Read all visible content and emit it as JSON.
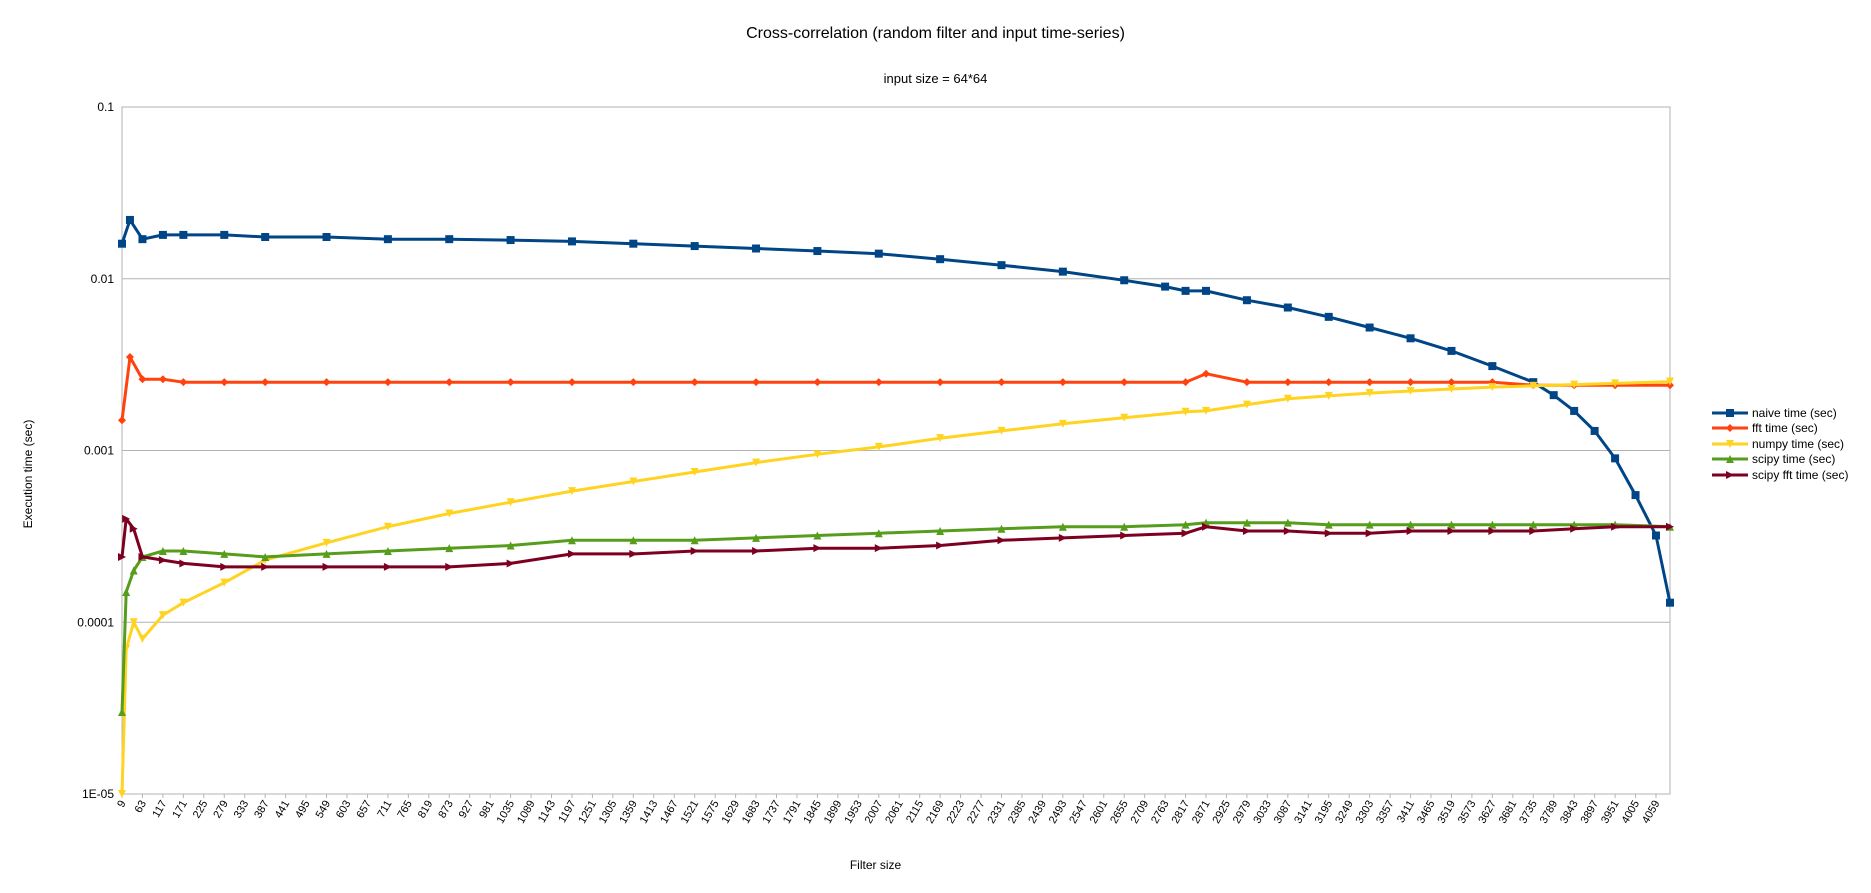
{
  "chart_data": {
    "type": "line",
    "title": "Cross-correlation (random filter and input time-series)",
    "subtitle": "input size = 64*64",
    "xlabel": "Filter size",
    "ylabel": "Execution time (sec)",
    "y_scale": "log",
    "ylim": [
      1e-05,
      0.1
    ],
    "y_ticks": [
      "0.1",
      "0.01",
      "0.001",
      "0.0001",
      "1E-05"
    ],
    "xlim": [
      9,
      4096
    ],
    "x_ticks": [
      "9",
      "63",
      "117",
      "171",
      "225",
      "279",
      "333",
      "387",
      "441",
      "495",
      "549",
      "603",
      "657",
      "711",
      "765",
      "819",
      "873",
      "927",
      "981",
      "1035",
      "1089",
      "1143",
      "1197",
      "1251",
      "1305",
      "1359",
      "1413",
      "1467",
      "1521",
      "1575",
      "1629",
      "1683",
      "1737",
      "1791",
      "1845",
      "1899",
      "1953",
      "2007",
      "2061",
      "2115",
      "2169",
      "2223",
      "2277",
      "2331",
      "2385",
      "2439",
      "2493",
      "2547",
      "2601",
      "2655",
      "2709",
      "2763",
      "2817",
      "2871",
      "2925",
      "2979",
      "3033",
      "3087",
      "3141",
      "3195",
      "3249",
      "3303",
      "3357",
      "3411",
      "3465",
      "3519",
      "3573",
      "3627",
      "3681",
      "3735",
      "3789",
      "3843",
      "3897",
      "3951",
      "4005",
      "4059"
    ],
    "grid": "horizontal",
    "legend_position": "right",
    "series": [
      {
        "name": "naive time (sec)",
        "color": "#004586",
        "marker": "square",
        "x": [
          9,
          30,
          63,
          117,
          171,
          279,
          387,
          549,
          711,
          873,
          1035,
          1197,
          1359,
          1521,
          1683,
          1845,
          2007,
          2169,
          2331,
          2493,
          2655,
          2763,
          2817,
          2871,
          2979,
          3087,
          3195,
          3303,
          3411,
          3519,
          3627,
          3735,
          3789,
          3843,
          3897,
          3951,
          4005,
          4059,
          4096
        ],
        "y": [
          0.016,
          0.022,
          0.017,
          0.018,
          0.018,
          0.018,
          0.0175,
          0.0175,
          0.017,
          0.017,
          0.0168,
          0.0165,
          0.016,
          0.0155,
          0.015,
          0.0145,
          0.014,
          0.013,
          0.012,
          0.011,
          0.0098,
          0.009,
          0.0085,
          0.0085,
          0.0075,
          0.0068,
          0.006,
          0.0052,
          0.0045,
          0.0038,
          0.0031,
          0.0025,
          0.0021,
          0.0017,
          0.0013,
          0.0009,
          0.00055,
          0.00032,
          0.00013
        ]
      },
      {
        "name": "fft time (sec)",
        "color": "#ff420e",
        "marker": "diamond",
        "x": [
          9,
          30,
          63,
          117,
          171,
          279,
          387,
          549,
          711,
          873,
          1035,
          1197,
          1359,
          1521,
          1683,
          1845,
          2007,
          2169,
          2331,
          2493,
          2655,
          2817,
          2871,
          2979,
          3087,
          3195,
          3303,
          3411,
          3519,
          3627,
          3735,
          3843,
          3951,
          4096
        ],
        "y": [
          0.0015,
          0.0035,
          0.0026,
          0.0026,
          0.0025,
          0.0025,
          0.0025,
          0.0025,
          0.0025,
          0.0025,
          0.0025,
          0.0025,
          0.0025,
          0.0025,
          0.0025,
          0.0025,
          0.0025,
          0.0025,
          0.0025,
          0.0025,
          0.0025,
          0.0025,
          0.0028,
          0.0025,
          0.0025,
          0.0025,
          0.0025,
          0.0025,
          0.0025,
          0.0025,
          0.0024,
          0.0024,
          0.0024,
          0.0024
        ]
      },
      {
        "name": "numpy time (sec)",
        "color": "#ffd320",
        "marker": "triangle-down",
        "x": [
          9,
          20,
          40,
          63,
          117,
          171,
          279,
          387,
          549,
          711,
          873,
          1035,
          1197,
          1359,
          1521,
          1683,
          1845,
          2007,
          2169,
          2331,
          2493,
          2655,
          2817,
          2871,
          2979,
          3087,
          3195,
          3303,
          3411,
          3519,
          3627,
          3735,
          3843,
          3951,
          4096
        ],
        "y": [
          1e-05,
          7e-05,
          0.0001,
          8e-05,
          0.00011,
          0.00013,
          0.00017,
          0.00023,
          0.00029,
          0.00036,
          0.00043,
          0.0005,
          0.00058,
          0.00066,
          0.00075,
          0.00085,
          0.00095,
          0.00105,
          0.00118,
          0.0013,
          0.00143,
          0.00155,
          0.00168,
          0.0017,
          0.00185,
          0.002,
          0.00208,
          0.00216,
          0.00222,
          0.00228,
          0.00234,
          0.00238,
          0.00242,
          0.00246,
          0.00252
        ]
      },
      {
        "name": "scipy time (sec)",
        "color": "#579d1c",
        "marker": "triangle-up",
        "x": [
          9,
          20,
          40,
          63,
          117,
          171,
          279,
          387,
          549,
          711,
          873,
          1035,
          1197,
          1359,
          1521,
          1683,
          1845,
          2007,
          2169,
          2331,
          2493,
          2655,
          2817,
          2871,
          2979,
          3087,
          3195,
          3303,
          3411,
          3519,
          3627,
          3735,
          3843,
          3951,
          4096
        ],
        "y": [
          3e-05,
          0.00015,
          0.0002,
          0.00024,
          0.00026,
          0.00026,
          0.00025,
          0.00024,
          0.00025,
          0.00026,
          0.00027,
          0.00028,
          0.0003,
          0.0003,
          0.0003,
          0.00031,
          0.00032,
          0.00033,
          0.00034,
          0.00035,
          0.00036,
          0.00036,
          0.00037,
          0.00038,
          0.00038,
          0.00038,
          0.00037,
          0.00037,
          0.00037,
          0.00037,
          0.00037,
          0.00037,
          0.00037,
          0.00037,
          0.00036
        ]
      },
      {
        "name": "scipy fft time (sec)",
        "color": "#7e0021",
        "marker": "triangle-right",
        "x": [
          9,
          20,
          40,
          63,
          117,
          171,
          279,
          387,
          549,
          711,
          873,
          1035,
          1197,
          1359,
          1521,
          1683,
          1845,
          2007,
          2169,
          2331,
          2493,
          2655,
          2817,
          2871,
          2979,
          3087,
          3195,
          3303,
          3411,
          3519,
          3627,
          3735,
          3843,
          3951,
          4096
        ],
        "y": [
          0.00024,
          0.0004,
          0.00035,
          0.00024,
          0.00023,
          0.00022,
          0.00021,
          0.00021,
          0.00021,
          0.00021,
          0.00021,
          0.00022,
          0.00025,
          0.00025,
          0.00026,
          0.00026,
          0.00027,
          0.00027,
          0.00028,
          0.0003,
          0.00031,
          0.00032,
          0.00033,
          0.00036,
          0.00034,
          0.00034,
          0.00033,
          0.00033,
          0.00034,
          0.00034,
          0.00034,
          0.00034,
          0.00035,
          0.00036,
          0.00036
        ]
      }
    ]
  }
}
